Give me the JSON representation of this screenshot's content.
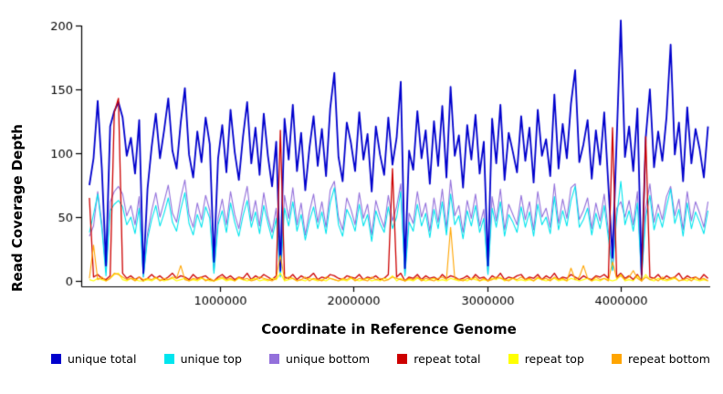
{
  "chart_data": {
    "type": "line",
    "title": "",
    "xlabel": "Coordinate in Reference Genome",
    "ylabel": "Read Coverage Depth",
    "xlim": [
      0,
      4650000
    ],
    "ylim": [
      0,
      210
    ],
    "xticks": [
      1000000,
      2000000,
      3000000,
      4000000
    ],
    "xtick_labels": [
      "1000000",
      "2000000",
      "3000000",
      "4000000"
    ],
    "yticks": [
      0,
      50,
      100,
      150,
      200
    ],
    "grid": false,
    "legend_position": "bottom",
    "x_start": 20000,
    "x_step": 31100,
    "draw_order": [
      2,
      1,
      0,
      3,
      4,
      5
    ],
    "series": [
      {
        "name": "unique total",
        "color": "#0000CD",
        "lwd": 1.8,
        "values": [
          75,
          96,
          141,
          88,
          12,
          121,
          133,
          140,
          128,
          98,
          112,
          84,
          126,
          6,
          72,
          105,
          131,
          96,
          118,
          143,
          102,
          88,
          124,
          151,
          99,
          81,
          117,
          93,
          128,
          107,
          15,
          96,
          122,
          85,
          134,
          101,
          79,
          113,
          140,
          92,
          120,
          83,
          131,
          98,
          74,
          109,
          8,
          127,
          95,
          138,
          86,
          116,
          71,
          104,
          129,
          90,
          119,
          82,
          135,
          163,
          97,
          78,
          124,
          108,
          86,
          132,
          95,
          115,
          70,
          121,
          99,
          83,
          128,
          91,
          112,
          156,
          10,
          102,
          87,
          133,
          96,
          118,
          76,
          125,
          90,
          137,
          81,
          152,
          98,
          114,
          73,
          122,
          95,
          130,
          84,
          109,
          12,
          127,
          92,
          138,
          79,
          116,
          101,
          85,
          129,
          94,
          120,
          77,
          134,
          98,
          111,
          82,
          146,
          88,
          123,
          96,
          139,
          165,
          93,
          107,
          126,
          80,
          118,
          91,
          132,
          75,
          18,
          110,
          204,
          97,
          121,
          86,
          135,
          5,
          112,
          150,
          89,
          117,
          94,
          128,
          185,
          99,
          124,
          78,
          136,
          92,
          119,
          103,
          81,
          121
        ]
      },
      {
        "name": "unique top",
        "color": "#00E5EE",
        "lwd": 1.1,
        "values": [
          38,
          52,
          68,
          41,
          4,
          55,
          60,
          63,
          58,
          44,
          50,
          37,
          57,
          3,
          33,
          48,
          59,
          43,
          53,
          65,
          46,
          39,
          56,
          69,
          45,
          36,
          52,
          42,
          58,
          49,
          6,
          44,
          55,
          38,
          61,
          46,
          35,
          51,
          63,
          42,
          54,
          37,
          59,
          45,
          33,
          49,
          3,
          57,
          43,
          62,
          39,
          52,
          32,
          47,
          58,
          41,
          54,
          37,
          61,
          73,
          44,
          35,
          56,
          49,
          39,
          60,
          43,
          52,
          31,
          55,
          45,
          38,
          58,
          41,
          50,
          70,
          4,
          46,
          39,
          60,
          43,
          53,
          34,
          56,
          41,
          62,
          36,
          68,
          44,
          51,
          33,
          55,
          43,
          59,
          38,
          49,
          5,
          57,
          42,
          62,
          35,
          52,
          46,
          38,
          58,
          42,
          54,
          35,
          60,
          44,
          50,
          37,
          66,
          40,
          55,
          43,
          63,
          74,
          42,
          48,
          57,
          36,
          53,
          41,
          59,
          34,
          8,
          50,
          78,
          44,
          55,
          39,
          61,
          2,
          50,
          67,
          40,
          53,
          42,
          58,
          72,
          45,
          56,
          35,
          61,
          41,
          54,
          46,
          37,
          55
        ]
      },
      {
        "name": "unique bottom",
        "color": "#9370DB",
        "lwd": 1.1,
        "values": [
          35,
          43,
          70,
          45,
          7,
          62,
          70,
          74,
          68,
          51,
          59,
          44,
          66,
          3,
          37,
          55,
          69,
          50,
          62,
          75,
          53,
          46,
          65,
          79,
          52,
          42,
          61,
          48,
          67,
          55,
          8,
          49,
          64,
          44,
          70,
          52,
          41,
          59,
          74,
          47,
          63,
          43,
          69,
          50,
          38,
          57,
          4,
          67,
          49,
          73,
          44,
          61,
          36,
          54,
          68,
          46,
          62,
          42,
          71,
          78,
          50,
          40,
          65,
          56,
          44,
          69,
          49,
          60,
          36,
          63,
          51,
          42,
          67,
          47,
          58,
          76,
          5,
          53,
          45,
          70,
          50,
          61,
          39,
          65,
          46,
          72,
          41,
          79,
          51,
          59,
          38,
          63,
          49,
          68,
          43,
          56,
          6,
          66,
          47,
          72,
          40,
          60,
          52,
          44,
          67,
          48,
          62,
          40,
          70,
          50,
          57,
          42,
          76,
          45,
          64,
          49,
          73,
          76,
          48,
          55,
          65,
          41,
          61,
          47,
          68,
          39,
          9,
          57,
          62,
          50,
          63,
          44,
          70,
          2,
          57,
          76,
          46,
          60,
          48,
          66,
          74,
          51,
          64,
          40,
          70,
          47,
          62,
          53,
          42,
          62
        ]
      },
      {
        "name": "repeat total",
        "color": "#CD0000",
        "lwd": 1.3,
        "values": [
          65,
          3,
          5,
          2,
          1,
          4,
          132,
          143,
          6,
          2,
          4,
          1,
          3,
          0,
          2,
          5,
          2,
          4,
          1,
          3,
          6,
          2,
          4,
          3,
          1,
          5,
          2,
          3,
          4,
          1,
          0,
          3,
          5,
          2,
          4,
          1,
          3,
          2,
          6,
          1,
          4,
          2,
          5,
          3,
          1,
          4,
          118,
          3,
          2,
          5,
          1,
          4,
          2,
          3,
          6,
          1,
          3,
          2,
          5,
          4,
          2,
          1,
          4,
          3,
          2,
          5,
          1,
          3,
          2,
          4,
          1,
          2,
          5,
          88,
          3,
          6,
          0,
          3,
          2,
          5,
          1,
          4,
          2,
          3,
          1,
          5,
          2,
          4,
          3,
          1,
          2,
          4,
          1,
          5,
          2,
          3,
          0,
          4,
          2,
          6,
          1,
          3,
          2,
          4,
          5,
          1,
          3,
          2,
          5,
          1,
          4,
          2,
          6,
          1,
          3,
          2,
          5,
          3,
          1,
          4,
          2,
          1,
          4,
          3,
          5,
          2,
          120,
          3,
          6,
          2,
          4,
          1,
          5,
          0,
          113,
          3,
          2,
          5,
          1,
          4,
          2,
          3,
          6,
          1,
          4,
          2,
          3,
          1,
          5,
          2
        ]
      },
      {
        "name": "repeat top",
        "color": "#FFFF00",
        "lwd": 1.1,
        "values": [
          1,
          0,
          2,
          1,
          0,
          2,
          5,
          6,
          1,
          0,
          2,
          1,
          0,
          0,
          1,
          0,
          2,
          1,
          0,
          1,
          2,
          0,
          1,
          2,
          0,
          1,
          0,
          2,
          1,
          0,
          0,
          1,
          2,
          0,
          1,
          0,
          2,
          1,
          0,
          1,
          2,
          0,
          1,
          0,
          2,
          1,
          6,
          0,
          1,
          2,
          0,
          1,
          0,
          2,
          1,
          0,
          1,
          0,
          2,
          1,
          0,
          1,
          0,
          2,
          1,
          0,
          1,
          2,
          0,
          1,
          0,
          2,
          1,
          4,
          0,
          2,
          0,
          1,
          0,
          2,
          1,
          0,
          1,
          2,
          0,
          1,
          0,
          2,
          1,
          0,
          1,
          0,
          2,
          1,
          0,
          1,
          0,
          2,
          1,
          3,
          0,
          1,
          2,
          0,
          1,
          0,
          1,
          0,
          2,
          1,
          0,
          1,
          2,
          0,
          1,
          0,
          2,
          1,
          0,
          1,
          2,
          0,
          1,
          0,
          2,
          1,
          0,
          1,
          5,
          0,
          1,
          0,
          4,
          0,
          5,
          1,
          0,
          2,
          1,
          0,
          1,
          2,
          0,
          1,
          0,
          2,
          1,
          0,
          1,
          0
        ]
      },
      {
        "name": "repeat bottom",
        "color": "#FFA500",
        "lwd": 1.1,
        "values": [
          2,
          28,
          1,
          3,
          0,
          2,
          6,
          5,
          3,
          1,
          2,
          0,
          3,
          1,
          2,
          1,
          3,
          0,
          2,
          1,
          3,
          2,
          12,
          1,
          0,
          2,
          1,
          3,
          0,
          2,
          0,
          2,
          3,
          1,
          2,
          0,
          3,
          1,
          2,
          0,
          1,
          3,
          2,
          1,
          0,
          2,
          20,
          1,
          3,
          2,
          0,
          1,
          3,
          0,
          2,
          1,
          0,
          3,
          2,
          1,
          0,
          2,
          1,
          3,
          0,
          2,
          1,
          0,
          3,
          1,
          2,
          0,
          1,
          3,
          2,
          1,
          0,
          2,
          1,
          3,
          0,
          2,
          1,
          0,
          2,
          3,
          1,
          42,
          2,
          1,
          0,
          2,
          1,
          3,
          0,
          2,
          0,
          1,
          3,
          2,
          1,
          0,
          2,
          1,
          3,
          1,
          2,
          0,
          3,
          1,
          2,
          0,
          3,
          1,
          2,
          0,
          10,
          1,
          3,
          12,
          2,
          0,
          3,
          1,
          2,
          0,
          15,
          2,
          4,
          1,
          3,
          8,
          2,
          0,
          3,
          1,
          2,
          0,
          3,
          1,
          2,
          3,
          0,
          1,
          2,
          0,
          3,
          1,
          2,
          0
        ]
      }
    ]
  }
}
